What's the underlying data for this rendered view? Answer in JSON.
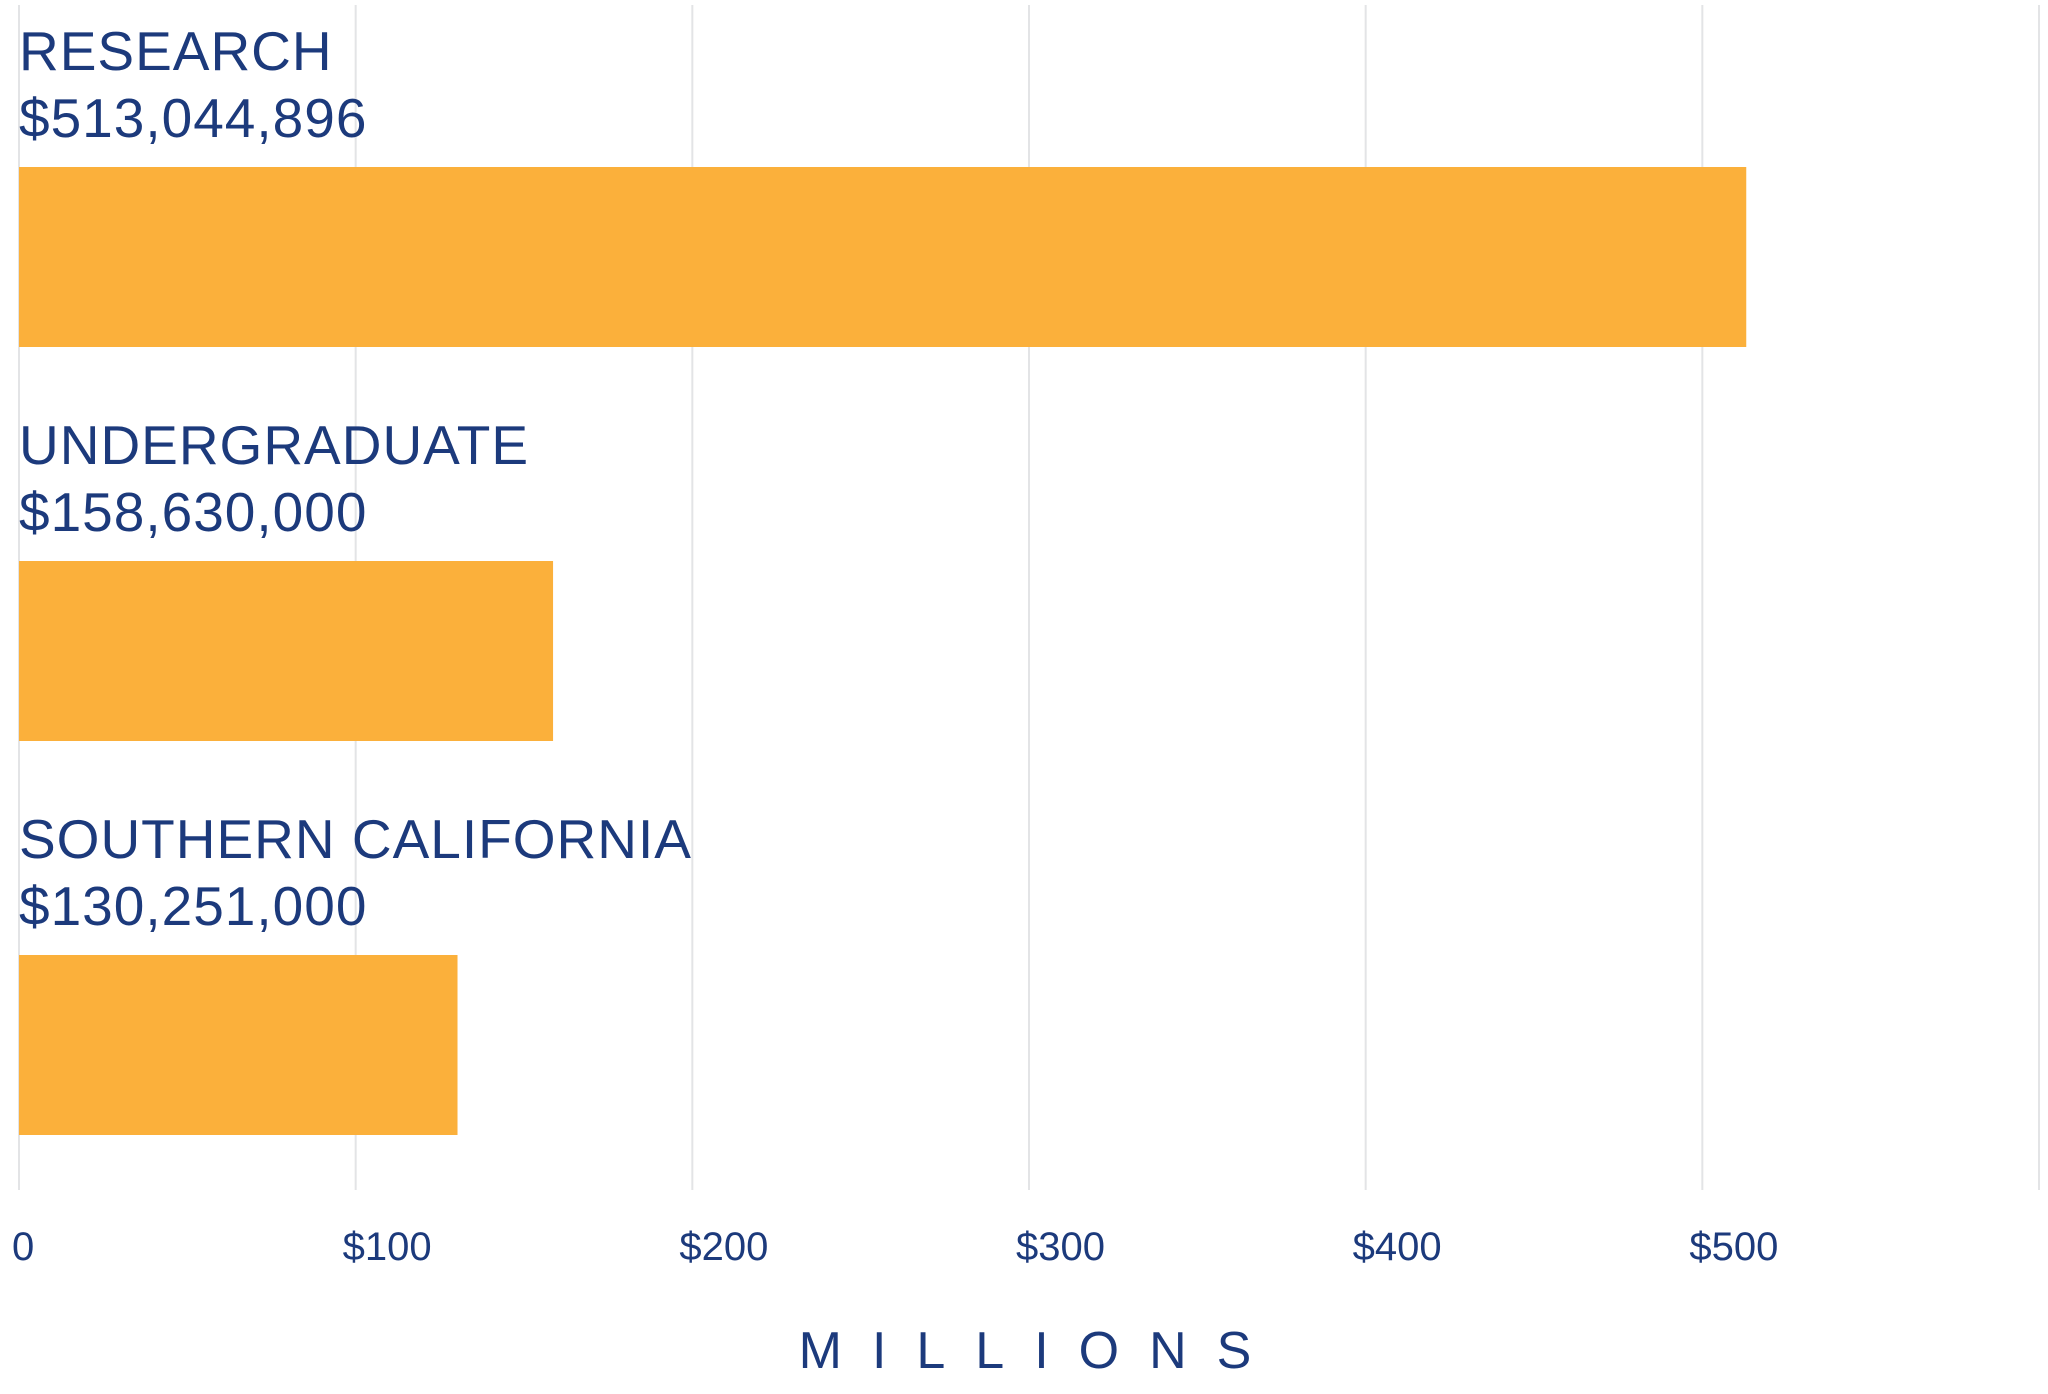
{
  "chart_data": {
    "type": "bar",
    "orientation": "horizontal",
    "categories": [
      "RESEARCH",
      "UNDERGRADUATE",
      "SOUTHERN CALIFORNIA"
    ],
    "values": [
      513.044896,
      158.63,
      130.251
    ],
    "value_labels": [
      "$513,044,896",
      "$158,630,000",
      "$130,251,000"
    ],
    "xlabel": "MILLIONS",
    "xlim": [
      0,
      600
    ],
    "x_ticks": [
      0,
      100,
      200,
      300,
      400,
      500,
      600
    ],
    "x_tick_labels": [
      "0",
      "$100",
      "$200",
      "$300",
      "$400",
      "$500",
      ""
    ],
    "grid": true,
    "legend": "none",
    "bar_color": "#fbb03b",
    "text_color": "#1c3a7c",
    "grid_color": "#e3e4e6"
  }
}
